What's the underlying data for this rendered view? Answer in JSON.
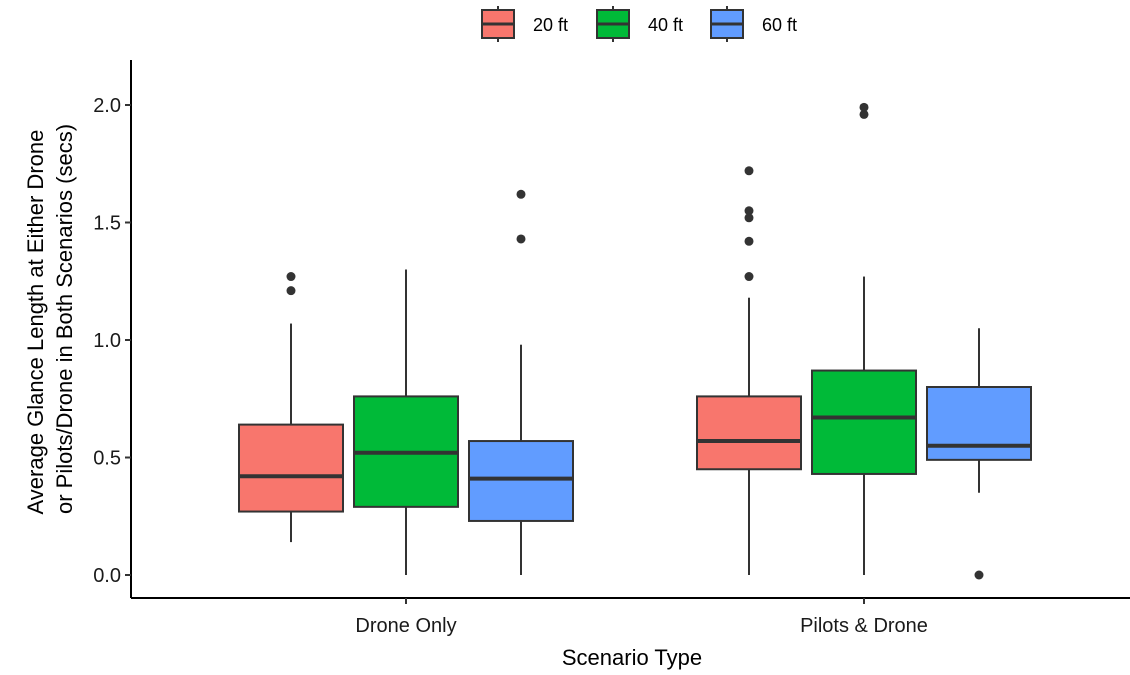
{
  "chart_data": {
    "type": "boxplot",
    "xlabel": "Scenario Type",
    "ylabel": [
      "Average Glance Length at Either Drone",
      "or Pilots/Drone in Both Scenarios (secs)"
    ],
    "ylim": [
      -0.1,
      2.1
    ],
    "yticks": [
      "0.0",
      "0.5",
      "1.0",
      "1.5",
      "2.0"
    ],
    "categories": [
      "Drone Only",
      "Pilots & Drone"
    ],
    "legend_position": "top",
    "grid": false,
    "series": [
      {
        "name": "20 ft",
        "color": "#F8766D",
        "boxes": [
          {
            "whisker_low": 0.14,
            "q1": 0.27,
            "median": 0.42,
            "q3": 0.64,
            "whisker_high": 1.07,
            "outliers": [
              1.21,
              1.27
            ]
          },
          {
            "whisker_low": 0.0,
            "q1": 0.45,
            "median": 0.57,
            "q3": 0.76,
            "whisker_high": 1.18,
            "outliers": [
              1.27,
              1.42,
              1.52,
              1.55,
              1.72
            ]
          }
        ]
      },
      {
        "name": "40 ft",
        "color": "#00BA38",
        "boxes": [
          {
            "whisker_low": 0.0,
            "q1": 0.29,
            "median": 0.52,
            "q3": 0.76,
            "whisker_high": 1.3,
            "outliers": []
          },
          {
            "whisker_low": 0.0,
            "q1": 0.43,
            "median": 0.67,
            "q3": 0.87,
            "whisker_high": 1.27,
            "outliers": [
              1.96,
              1.99
            ]
          }
        ]
      },
      {
        "name": "60 ft",
        "color": "#619CFF",
        "boxes": [
          {
            "whisker_low": 0.0,
            "q1": 0.23,
            "median": 0.41,
            "q3": 0.57,
            "whisker_high": 0.98,
            "outliers": [
              1.43,
              1.62
            ]
          },
          {
            "whisker_low": 0.35,
            "q1": 0.49,
            "median": 0.55,
            "q3": 0.8,
            "whisker_high": 1.05,
            "outliers": [
              0.0
            ]
          }
        ]
      }
    ]
  }
}
